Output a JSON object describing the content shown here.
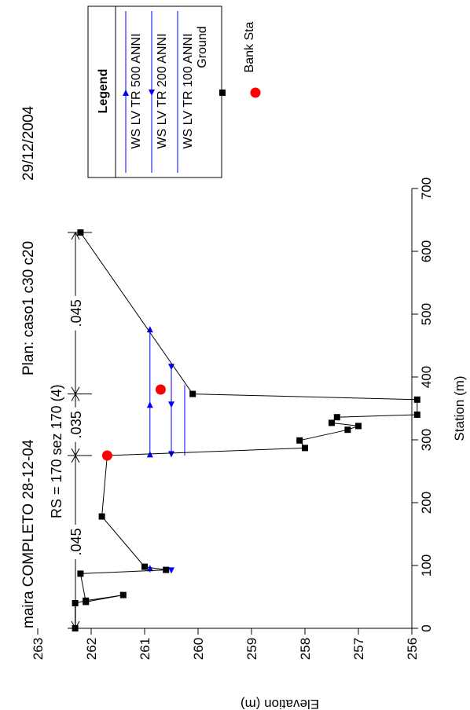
{
  "header": {
    "project": "maira COMPLETO 28-12-04",
    "plan": "Plan: caso1 c30 c20",
    "date": "29/12/2004",
    "rs": "RS = 170  sez 170 (4)"
  },
  "mannings": [
    ".045",
    ".035",
    ".045"
  ],
  "colors": {
    "ground": "#000000",
    "ws": "#0000ff",
    "bank": "#ff0000"
  },
  "chart_data": {
    "type": "line",
    "orientation": "rotated-90",
    "xlabel": "Station (m)",
    "ylabel": "Elevation (m)",
    "xlim": [
      0,
      700
    ],
    "ylim": [
      256,
      263.5
    ],
    "xticks": [
      "0",
      "100",
      "200",
      "300",
      "400",
      "500",
      "600",
      "700"
    ],
    "yticks": [
      "256",
      "257",
      "258",
      "259",
      "260",
      "261",
      "262",
      "263"
    ],
    "legend": {
      "title": "Legend",
      "placement": "top-right",
      "entries": [
        {
          "label": "WS LV TR 500 ANNI",
          "marker": "triangle-right",
          "color": "#0000ff"
        },
        {
          "label": "WS LV TR 200 ANNI",
          "marker": "triangle-left",
          "color": "#0000ff"
        },
        {
          "label": "WS LV TR 100 ANNI",
          "marker": "none",
          "color": "#0000ff"
        },
        {
          "label": "Ground",
          "marker": "square",
          "color": "#000000"
        },
        {
          "label": "Bank Sta",
          "marker": "circle",
          "color": "#ff0000"
        }
      ]
    },
    "ground": {
      "name": "Ground",
      "points": [
        [
          0,
          262.3
        ],
        [
          40,
          262.3
        ],
        [
          44,
          262.1
        ],
        [
          53,
          261.4
        ],
        [
          42,
          262.1
        ],
        [
          87,
          262.2
        ],
        [
          93,
          260.6
        ],
        [
          98,
          261.0
        ],
        [
          178,
          261.8
        ],
        [
          275,
          261.7
        ],
        [
          287,
          258.0
        ],
        [
          299,
          258.1
        ],
        [
          316,
          257.2
        ],
        [
          322,
          257.0
        ],
        [
          327,
          257.5
        ],
        [
          336,
          257.4
        ],
        [
          340,
          255.9
        ],
        [
          364,
          255.9
        ],
        [
          373,
          260.1
        ],
        [
          630,
          262.2
        ]
      ]
    },
    "bank_stations": [
      [
        275,
        261.7
      ],
      [
        380,
        260.7
      ]
    ],
    "water_surfaces": [
      {
        "name": "WS LV TR 500 ANNI",
        "elevation": 260.9,
        "segments": [
          [
            89,
            98
          ],
          [
            275,
            476
          ]
        ],
        "markers": [
          96,
          277,
          356,
          476
        ]
      },
      {
        "name": "WS LV TR 200 ANNI",
        "elevation": 260.5,
        "segments": [
          [
            89,
            95
          ],
          [
            275,
            416
          ]
        ],
        "markers": [
          92,
          277,
          356,
          416
        ]
      },
      {
        "name": "WS LV TR 100 ANNI",
        "elevation": 260.25,
        "segments": [
          [
            275,
            387
          ]
        ],
        "markers": []
      }
    ],
    "manning_breaks": [
      0,
      275,
      373,
      630
    ],
    "grid": false
  }
}
